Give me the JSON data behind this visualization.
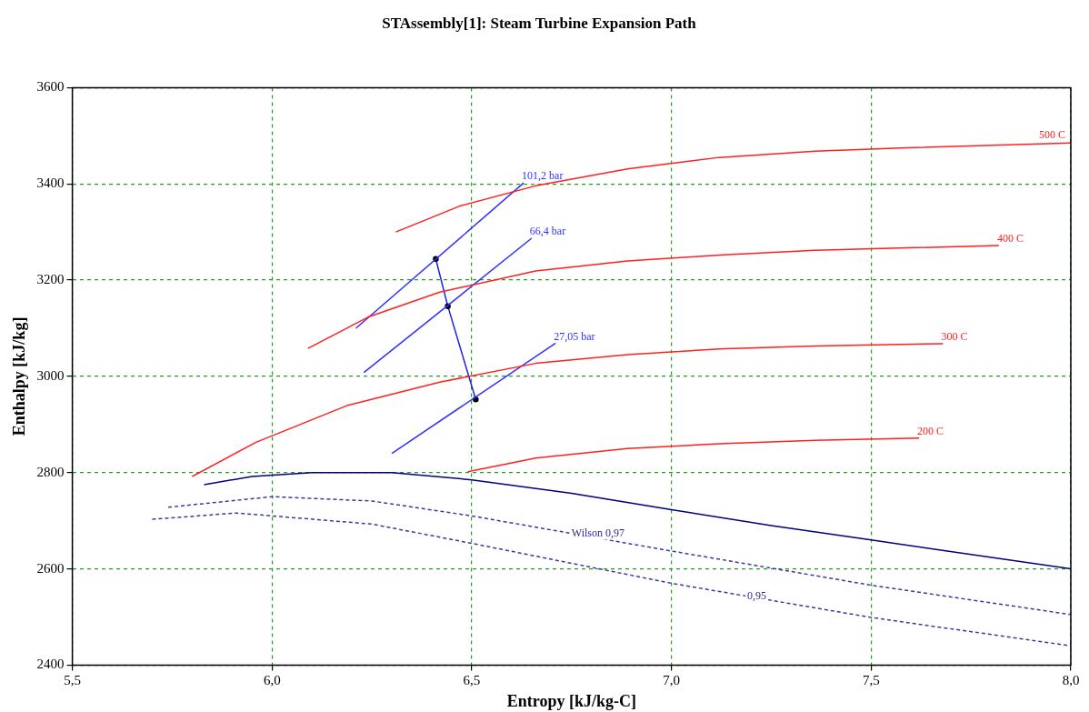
{
  "chart_data": {
    "type": "line",
    "title": "STAssembly[1]: Steam Turbine Expansion Path",
    "xlabel": "Entropy [kJ/kg-C]",
    "ylabel": "Enthalpy [kJ/kg]",
    "xlim": [
      5.5,
      8.0
    ],
    "ylim": [
      2400,
      3600
    ],
    "xticks": [
      {
        "value": 5.5,
        "label": "5,5"
      },
      {
        "value": 6.0,
        "label": "6,0"
      },
      {
        "value": 6.5,
        "label": "6,5"
      },
      {
        "value": 7.0,
        "label": "7,0"
      },
      {
        "value": 7.5,
        "label": "7,5"
      },
      {
        "value": 8.0,
        "label": "8,0"
      }
    ],
    "yticks": [
      2400,
      2600,
      2800,
      3000,
      3200,
      3400,
      3600
    ],
    "grid": true,
    "marker": "none",
    "line_style": "solid",
    "series": [
      {
        "name": "500 C",
        "color": "#ff2020",
        "x": [
          6.31,
          6.47,
          6.66,
          6.89,
          7.12,
          7.36,
          7.59,
          8.0
        ],
        "values": [
          3300,
          3354,
          3396,
          3431,
          3455,
          3468,
          3475,
          3485
        ]
      },
      {
        "name": "400 C",
        "color": "#ff2020",
        "x": [
          6.09,
          6.24,
          6.42,
          6.66,
          6.89,
          7.12,
          7.36,
          7.59,
          7.82
        ],
        "values": [
          3058,
          3123,
          3175,
          3219,
          3240,
          3252,
          3262,
          3267,
          3272
        ]
      },
      {
        "name": "300 C",
        "color": "#ff2020",
        "x": [
          5.8,
          5.96,
          6.19,
          6.42,
          6.66,
          6.89,
          7.12,
          7.36,
          7.68
        ],
        "values": [
          2792,
          2863,
          2940,
          2988,
          3027,
          3045,
          3057,
          3063,
          3068
        ]
      },
      {
        "name": "200 C",
        "color": "#ff2020",
        "x": [
          6.49,
          6.66,
          6.89,
          7.12,
          7.36,
          7.62
        ],
        "values": [
          2802,
          2830,
          2850,
          2860,
          2867,
          2872
        ]
      },
      {
        "name": "101,2 bar",
        "color": "#3030ff",
        "x": [
          6.21,
          6.63
        ],
        "values": [
          3100,
          3402
        ]
      },
      {
        "name": "66,4 bar",
        "color": "#3030ff",
        "x": [
          6.23,
          6.65
        ],
        "values": [
          3008,
          3287
        ]
      },
      {
        "name": "27,05 bar",
        "color": "#3030ff",
        "x": [
          6.3,
          6.71
        ],
        "values": [
          2840,
          3069
        ]
      },
      {
        "color": "#2020e0",
        "x": [
          6.41,
          6.44,
          6.51
        ],
        "values": [
          3244,
          3146,
          2952
        ],
        "marker": "circle"
      },
      {
        "color": "#000080",
        "x": [
          5.83,
          5.95,
          6.1,
          6.3,
          6.5,
          6.75,
          7.0,
          7.25,
          7.5,
          7.75,
          8.0
        ],
        "values": [
          2775,
          2792,
          2800,
          2800,
          2785,
          2757,
          2723,
          2690,
          2660,
          2630,
          2600
        ]
      },
      {
        "color": "#3a3aa0",
        "line_style": "dashed",
        "x": [
          5.74,
          6.0,
          6.25,
          6.5,
          7.0,
          7.5,
          8.0
        ],
        "values": [
          2728,
          2750,
          2741,
          2710,
          2637,
          2566,
          2505
        ]
      },
      {
        "color": "#3a3aa0",
        "line_style": "dashed",
        "x": [
          5.7,
          5.91,
          6.0,
          6.25,
          6.5,
          7.0,
          7.5,
          8.0
        ],
        "values": [
          2703,
          2716,
          2710,
          2693,
          2653,
          2570,
          2499,
          2440
        ]
      }
    ],
    "annotations": [
      {
        "text": "Wilson 0,97",
        "x": 6.75,
        "y": 2674
      },
      {
        "text": "0,95",
        "x": 7.19,
        "y": 2543
      }
    ]
  }
}
